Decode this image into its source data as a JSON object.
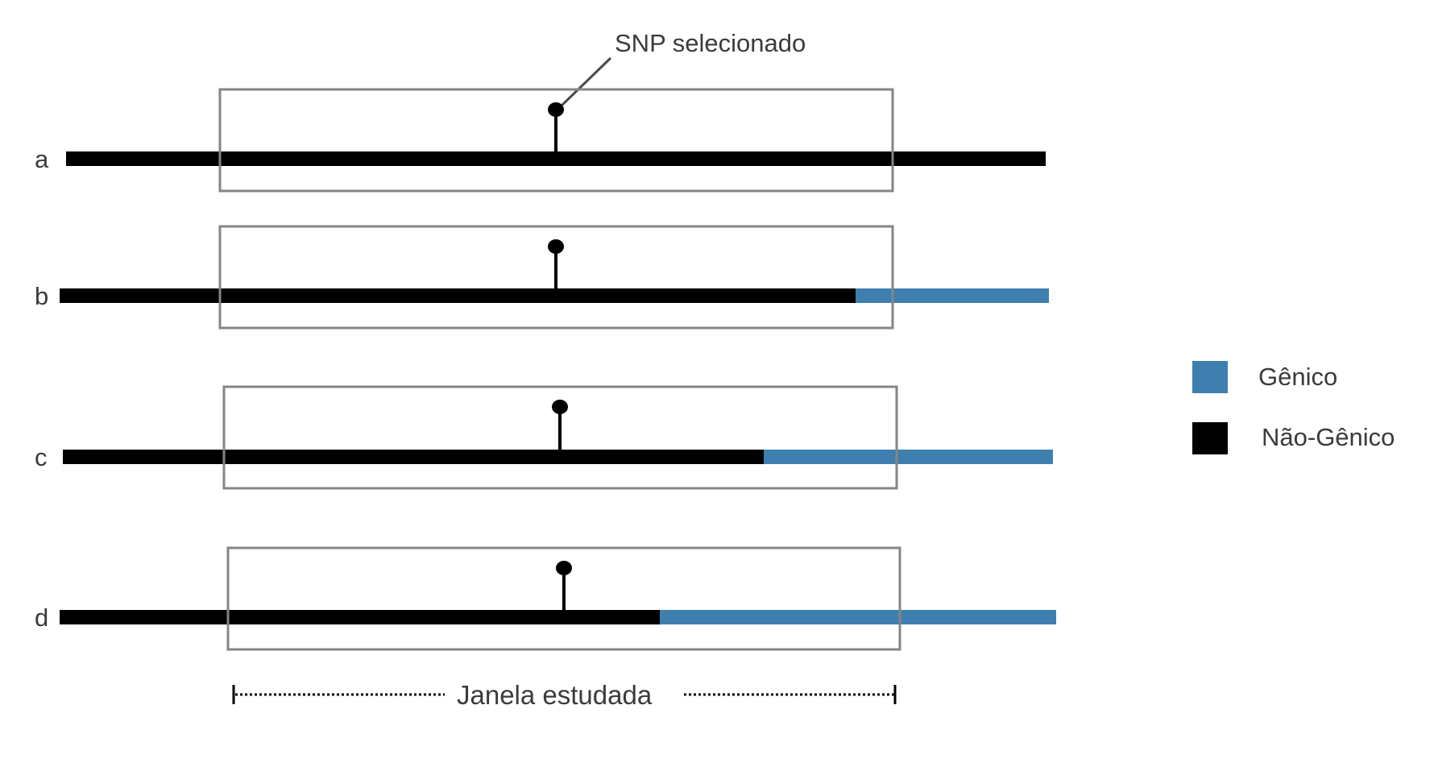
{
  "callout": {
    "label": "SNP selecionado"
  },
  "rows": [
    {
      "label": "a",
      "genic_fraction": 0.0
    },
    {
      "label": "b",
      "genic_fraction": 0.24
    },
    {
      "label": "c",
      "genic_fraction": 0.29
    },
    {
      "label": "d",
      "genic_fraction": 0.4
    }
  ],
  "window": {
    "label": "Janela estudada"
  },
  "legend": {
    "items": [
      {
        "label": "Gênico",
        "color": "#3e7fb0"
      },
      {
        "label": "Não-Gênico",
        "color": "#000000"
      }
    ]
  }
}
